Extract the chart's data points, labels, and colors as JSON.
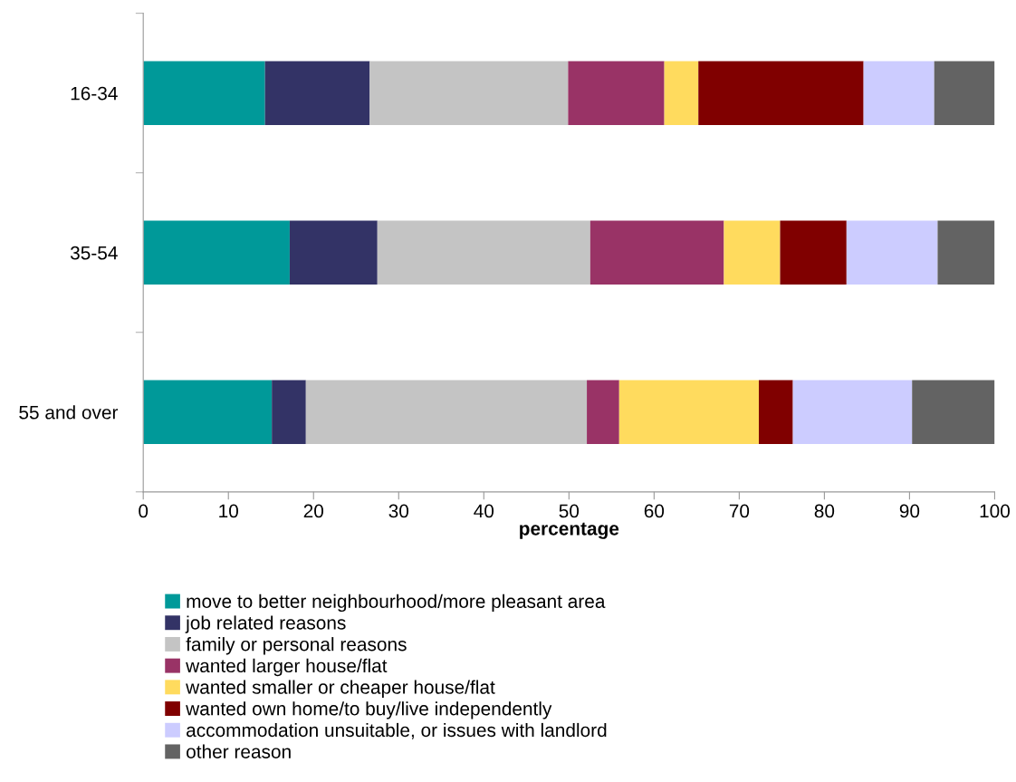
{
  "chart_data": {
    "type": "bar",
    "orientation": "horizontal",
    "stacked": true,
    "xlabel": "percentage",
    "categories": [
      "16-34",
      "35-54",
      "55 and over"
    ],
    "xlim": [
      0,
      100
    ],
    "xticks": [
      0,
      10,
      20,
      30,
      40,
      50,
      60,
      70,
      80,
      90,
      100
    ],
    "grid": false,
    "legend": "bottom",
    "series": [
      {
        "name": "move to better neighbourhood/more pleasant area",
        "color": "#009999",
        "values": [
          14.3,
          17.2,
          15.1
        ]
      },
      {
        "name": "job related reasons",
        "color": "#333366",
        "values": [
          12.3,
          10.3,
          4.0
        ]
      },
      {
        "name": "family or personal reasons",
        "color": "#c4c4c4",
        "values": [
          23.3,
          25.0,
          33.0
        ]
      },
      {
        "name": "wanted larger house/flat",
        "color": "#993366",
        "values": [
          11.3,
          15.7,
          3.8
        ]
      },
      {
        "name": "wanted smaller or cheaper house/flat",
        "color": "#ffdb5e",
        "values": [
          4.0,
          6.6,
          16.4
        ]
      },
      {
        "name": "wanted own home/to buy/live independently",
        "color": "#800000",
        "values": [
          19.4,
          7.8,
          4.0
        ]
      },
      {
        "name": "accommodation unsuitable, or issues with landlord",
        "color": "#ccccff",
        "values": [
          8.3,
          10.7,
          14.0
        ]
      },
      {
        "name": "other reason",
        "color": "#636363",
        "values": [
          7.1,
          6.7,
          9.7
        ]
      }
    ]
  }
}
